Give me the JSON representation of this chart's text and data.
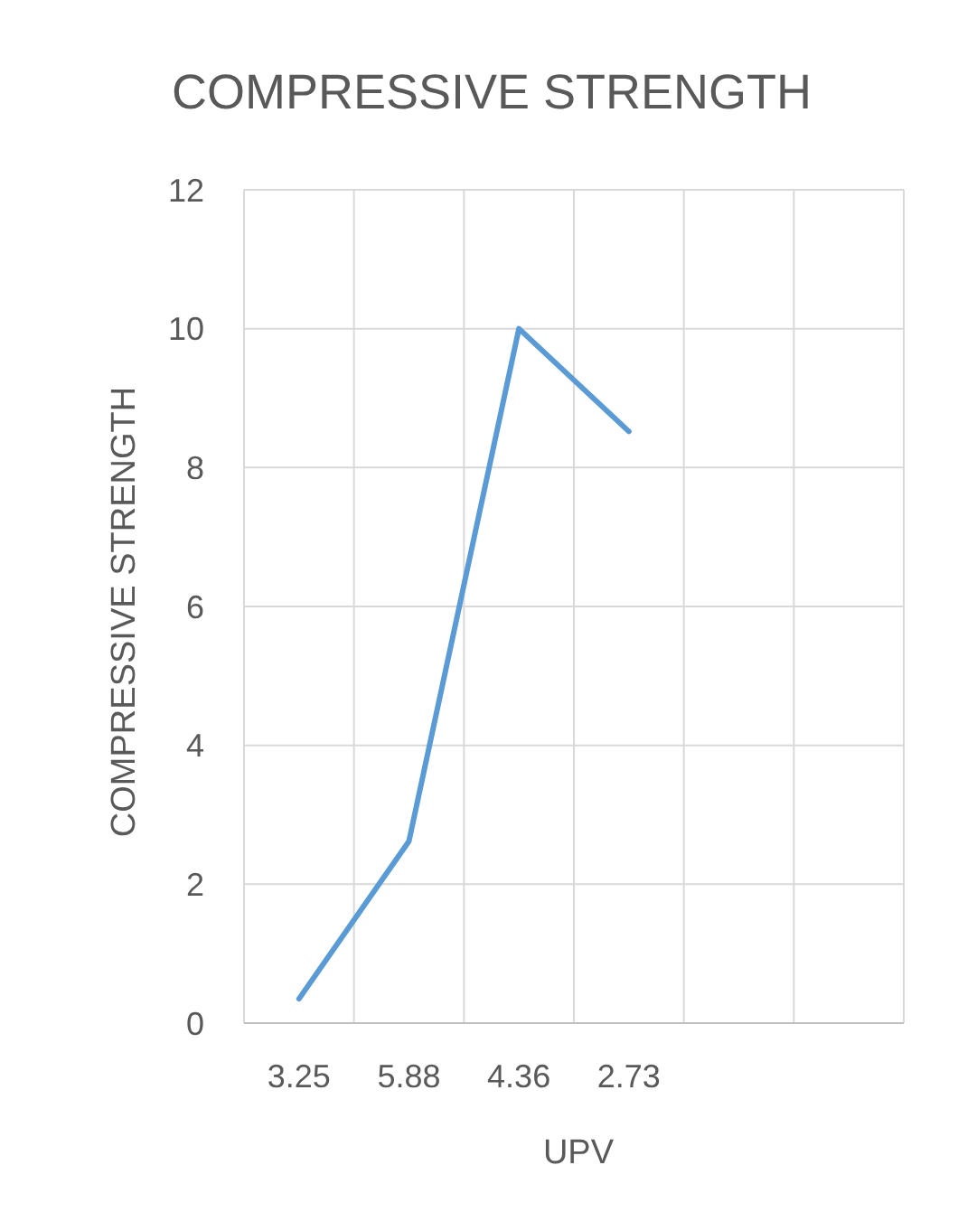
{
  "chart_data": {
    "type": "line",
    "title": "COMPRESSIVE STRENGTH",
    "xlabel": "UPV",
    "ylabel": "COMPRESSIVE STRENGTH",
    "categories": [
      "3.25",
      "5.88",
      "4.36",
      "2.73",
      null,
      null
    ],
    "series": [
      {
        "color": "#5b9bd5",
        "values": [
          0.35,
          2.62,
          10,
          8.52,
          null,
          null
        ]
      }
    ],
    "ylim": [
      0,
      12
    ],
    "yticks": [
      0,
      2,
      4,
      6,
      8,
      10,
      12
    ],
    "grid": true,
    "marker": "none",
    "line_style": "solid"
  }
}
